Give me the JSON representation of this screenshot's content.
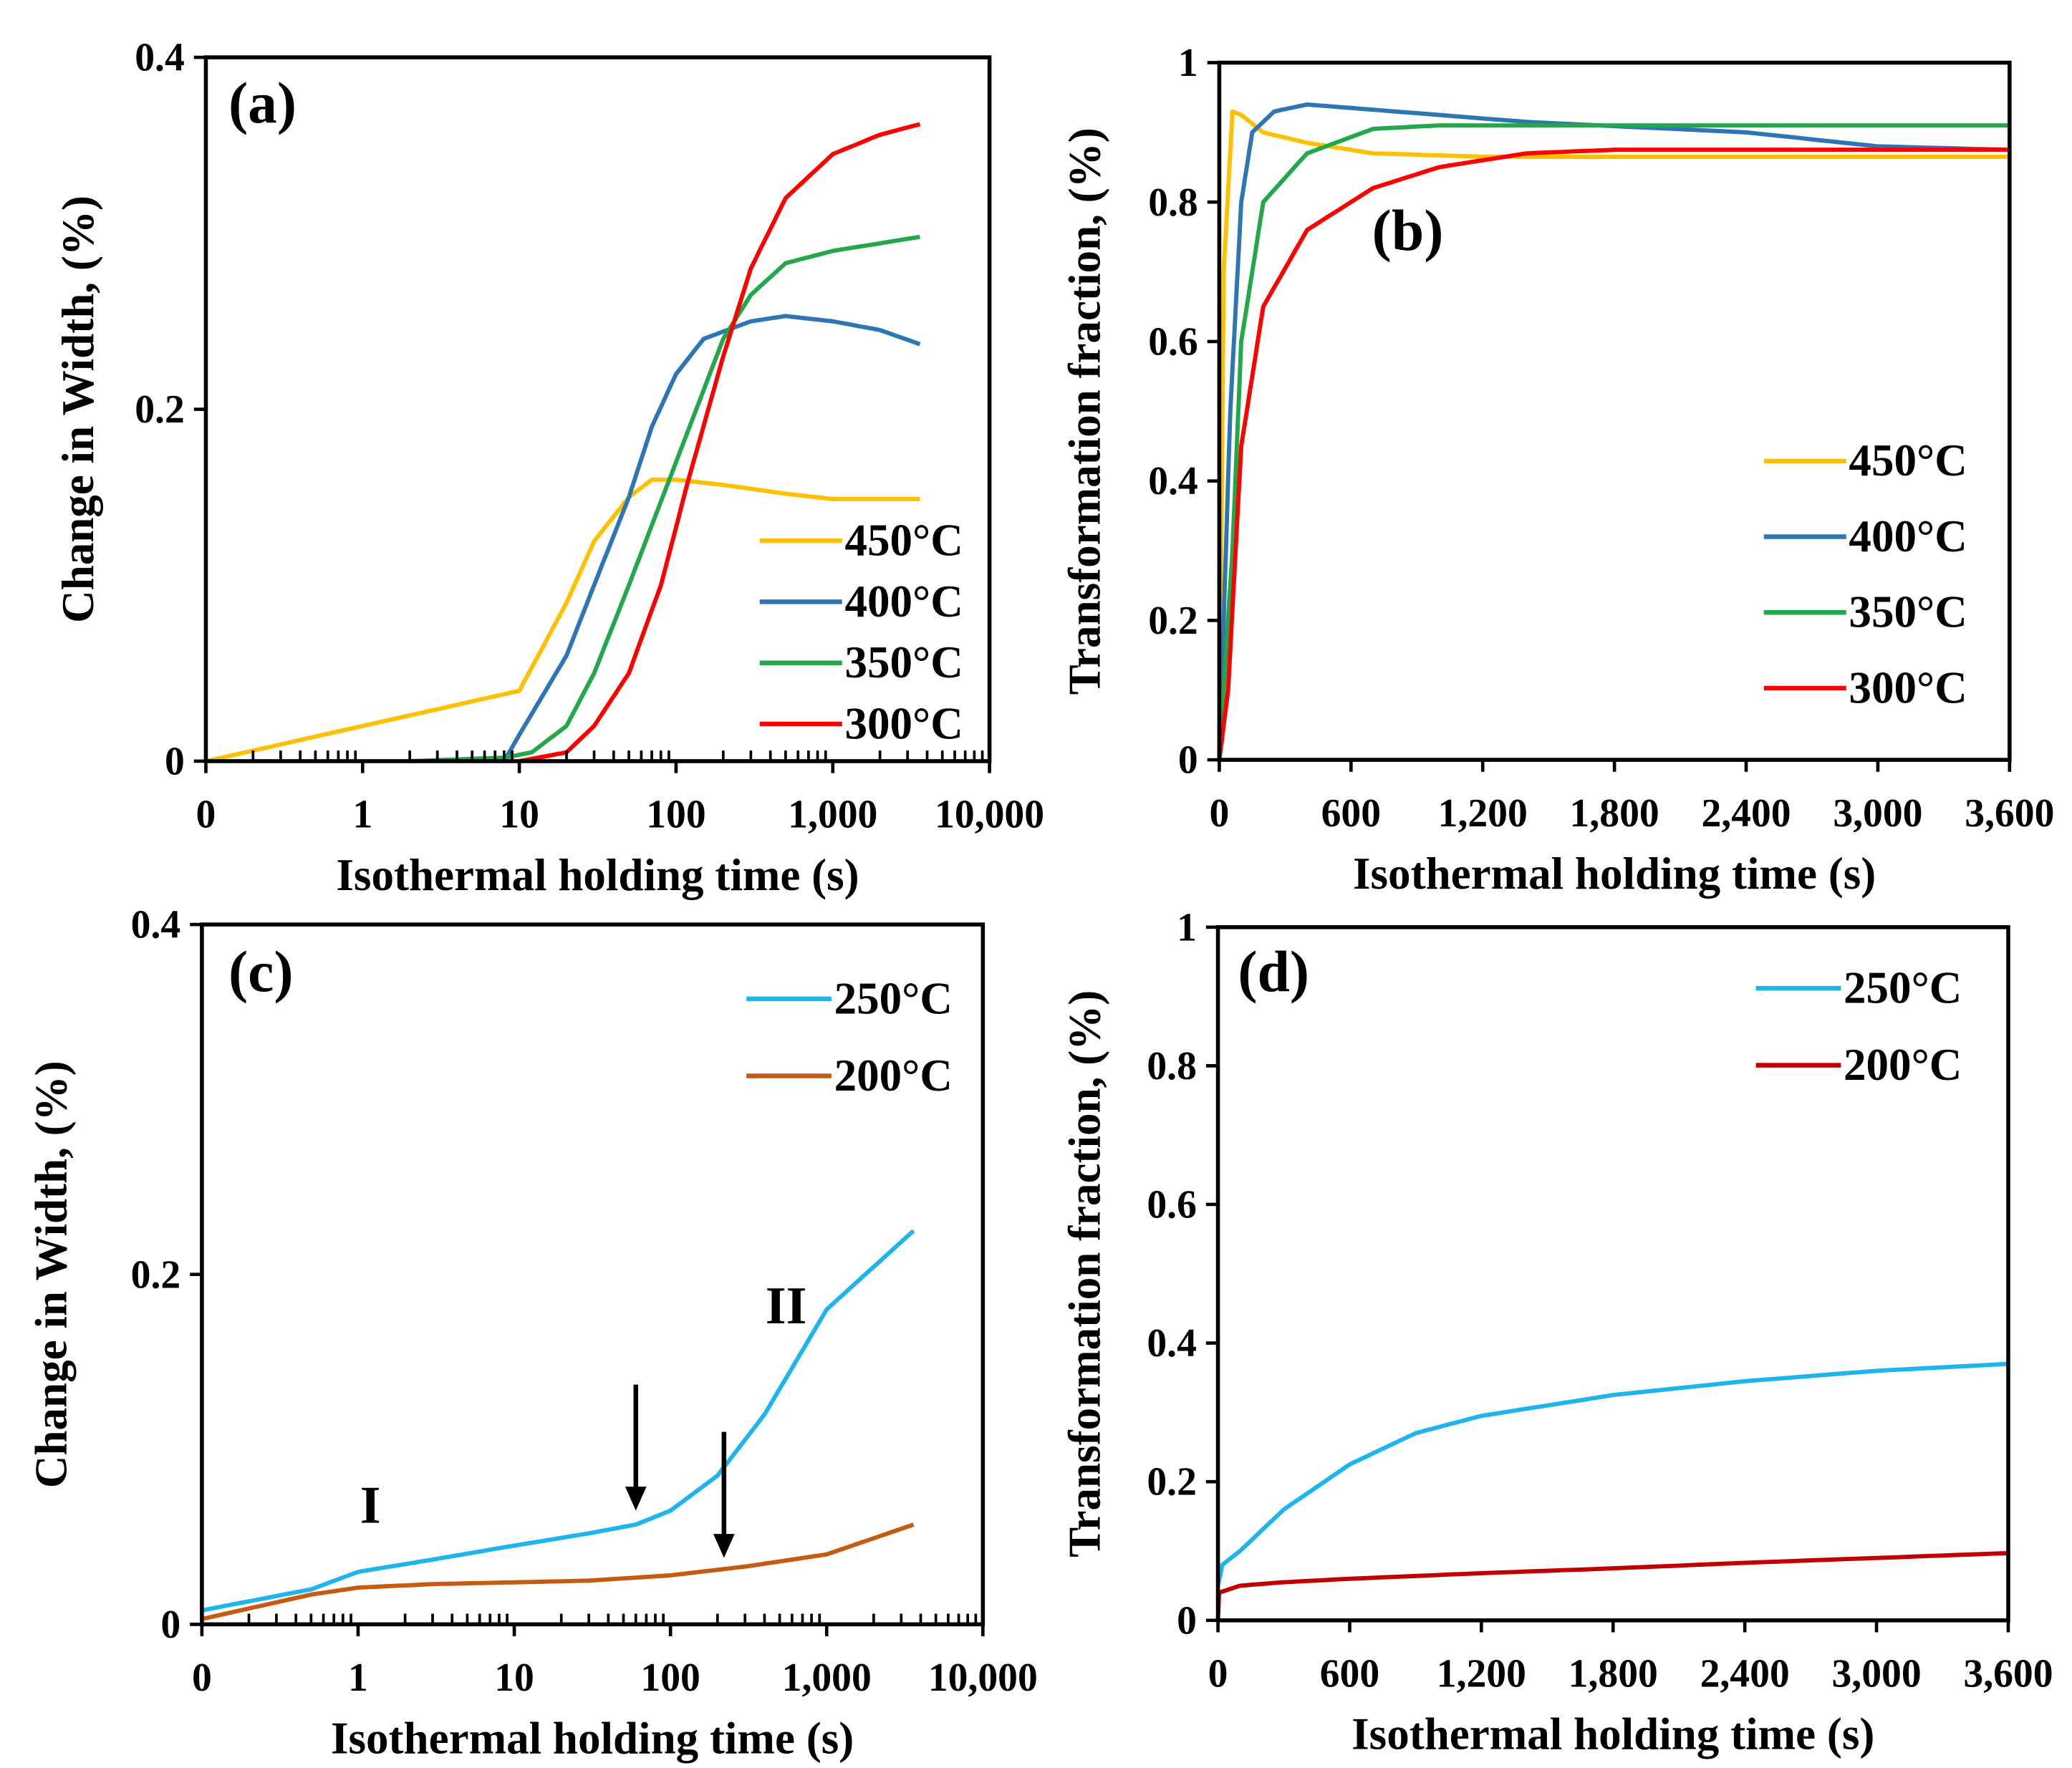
{
  "chart_data": [
    {
      "panel_label": "(a)",
      "type": "line",
      "xscale": "log",
      "xlabel": "Isothermal holding time (s)",
      "ylabel": "Change in Width, (%)",
      "xtick_labels": [
        "0",
        "1",
        "10",
        "100",
        "1,000",
        "10,000"
      ],
      "xtick_values": [
        0.1,
        1,
        10,
        100,
        1000,
        10000
      ],
      "ytick_labels": [
        "0",
        "0.2",
        "0.4"
      ],
      "ytick_values": [
        0,
        0.2,
        0.4
      ],
      "ylim": [
        0,
        0.4
      ],
      "xlim": [
        0.1,
        10000
      ],
      "legend_position": "lower-right",
      "series": [
        {
          "name": "450°C",
          "color": "#FFC000",
          "x": [
            0.1,
            10,
            20,
            30,
            50,
            70,
            100,
            200,
            500,
            1000,
            3600
          ],
          "y": [
            0,
            0.04,
            0.09,
            0.125,
            0.15,
            0.16,
            0.16,
            0.157,
            0.152,
            0.149,
            0.149
          ]
        },
        {
          "name": "400°C",
          "color": "#2E75B6",
          "x": [
            8,
            10,
            20,
            30,
            50,
            70,
            100,
            150,
            300,
            500,
            1000,
            2000,
            3600
          ],
          "y": [
            0,
            0.015,
            0.06,
            0.1,
            0.15,
            0.19,
            0.22,
            0.24,
            0.25,
            0.253,
            0.25,
            0.245,
            0.237
          ]
        },
        {
          "name": "350°C",
          "color": "#22A84A",
          "x": [
            2,
            8,
            12,
            20,
            30,
            50,
            100,
            200,
            300,
            500,
            1000,
            3600
          ],
          "y": [
            0,
            0.002,
            0.005,
            0.02,
            0.05,
            0.1,
            0.17,
            0.24,
            0.265,
            0.283,
            0.29,
            0.298
          ]
        },
        {
          "name": "300°C",
          "color": "#FF0000",
          "x": [
            10,
            20,
            30,
            50,
            80,
            120,
            200,
            300,
            500,
            1000,
            2000,
            3600
          ],
          "y": [
            0,
            0.005,
            0.02,
            0.05,
            0.1,
            0.16,
            0.23,
            0.28,
            0.32,
            0.345,
            0.356,
            0.362
          ]
        }
      ]
    },
    {
      "panel_label": "(b)",
      "type": "line",
      "xscale": "linear",
      "xlabel": "Isothermal holding time (s)",
      "ylabel": "Transformation fraction, (%)",
      "xtick_labels": [
        "0",
        "600",
        "1,200",
        "1,800",
        "2,400",
        "3,000",
        "3,600"
      ],
      "xtick_values": [
        0,
        600,
        1200,
        1800,
        2400,
        3000,
        3600
      ],
      "ytick_labels": [
        "0",
        "0.2",
        "0.4",
        "0.6",
        "0.8",
        "1"
      ],
      "ytick_values": [
        0,
        0.2,
        0.4,
        0.6,
        0.8,
        1
      ],
      "ylim": [
        0,
        1
      ],
      "xlim": [
        0,
        3600
      ],
      "legend_position": "right",
      "series": [
        {
          "name": "450°C",
          "color": "#FFC000",
          "x": [
            0,
            20,
            60,
            100,
            200,
            400,
            700,
            1200,
            3600
          ],
          "y": [
            0,
            0.7,
            0.93,
            0.925,
            0.9,
            0.885,
            0.87,
            0.865,
            0.865
          ]
        },
        {
          "name": "400°C",
          "color": "#2E75B6",
          "x": [
            0,
            50,
            100,
            150,
            250,
            400,
            800,
            1400,
            2400,
            3000,
            3600
          ],
          "y": [
            0,
            0.5,
            0.8,
            0.9,
            0.93,
            0.94,
            0.93,
            0.915,
            0.9,
            0.88,
            0.875
          ]
        },
        {
          "name": "350°C",
          "color": "#22A84A",
          "x": [
            0,
            60,
            100,
            200,
            400,
            700,
            1000,
            3600
          ],
          "y": [
            0,
            0.3,
            0.6,
            0.8,
            0.87,
            0.905,
            0.91,
            0.91
          ]
        },
        {
          "name": "300°C",
          "color": "#FF0000",
          "x": [
            0,
            40,
            100,
            200,
            400,
            700,
            1000,
            1400,
            1800,
            3600
          ],
          "y": [
            0,
            0.1,
            0.45,
            0.65,
            0.76,
            0.82,
            0.85,
            0.87,
            0.875,
            0.875
          ]
        }
      ]
    },
    {
      "panel_label": "(c)",
      "type": "line",
      "xscale": "log",
      "xlabel": "Isothermal holding time (s)",
      "ylabel": "Change in Width, (%)",
      "xtick_labels": [
        "0",
        "1",
        "10",
        "100",
        "1,000",
        "10,000"
      ],
      "xtick_values": [
        0.1,
        1,
        10,
        100,
        1000,
        10000
      ],
      "ytick_labels": [
        "0",
        "0.2",
        "0.4"
      ],
      "ytick_values": [
        0,
        0.2,
        0.4
      ],
      "ylim": [
        0,
        0.4
      ],
      "xlim": [
        0.1,
        10000
      ],
      "legend_position": "top-right",
      "annotations": [
        {
          "text": "I",
          "x": 1.2,
          "y": 0.058
        },
        {
          "text": "II",
          "x": 550,
          "y": 0.172
        }
      ],
      "arrows": [
        {
          "x": 60,
          "y_from": 0.137,
          "y_to": 0.065
        },
        {
          "x": 220,
          "y_from": 0.11,
          "y_to": 0.038
        }
      ],
      "series": [
        {
          "name": "250°C",
          "color": "#1EB4EE",
          "x": [
            0.1,
            0.5,
            1,
            3,
            10,
            30,
            60,
            100,
            200,
            400,
            1000,
            3600
          ],
          "y": [
            0.008,
            0.02,
            0.03,
            0.037,
            0.045,
            0.052,
            0.057,
            0.065,
            0.085,
            0.12,
            0.18,
            0.225
          ]
        },
        {
          "name": "200°C",
          "color": "#C55A11",
          "x": [
            0.1,
            0.5,
            1,
            3,
            10,
            30,
            100,
            300,
            1000,
            3600
          ],
          "y": [
            0.003,
            0.017,
            0.021,
            0.023,
            0.024,
            0.025,
            0.028,
            0.033,
            0.04,
            0.057
          ]
        }
      ]
    },
    {
      "panel_label": "(d)",
      "type": "line",
      "xscale": "linear",
      "xlabel": "Isothermal holding time (s)",
      "ylabel": "Transformation fraction, (%)",
      "xtick_labels": [
        "0",
        "600",
        "1,200",
        "1,800",
        "2,400",
        "3,000",
        "3,600"
      ],
      "xtick_values": [
        0,
        600,
        1200,
        1800,
        2400,
        3000,
        3600
      ],
      "ytick_labels": [
        "0",
        "0.2",
        "0.4",
        "0.6",
        "0.8",
        "1"
      ],
      "ytick_values": [
        0,
        0.2,
        0.4,
        0.6,
        0.8,
        1
      ],
      "ylim": [
        0,
        1
      ],
      "xlim": [
        0,
        3600
      ],
      "legend_position": "top-right",
      "series": [
        {
          "name": "250°C",
          "color": "#1EB4EE",
          "x": [
            0,
            20,
            100,
            300,
            600,
            900,
            1200,
            1800,
            2400,
            3000,
            3600
          ],
          "y": [
            0.05,
            0.08,
            0.1,
            0.16,
            0.225,
            0.27,
            0.295,
            0.325,
            0.345,
            0.36,
            0.37
          ]
        },
        {
          "name": "200°C",
          "color": "#C00000",
          "x": [
            0,
            5,
            100,
            300,
            600,
            1200,
            1800,
            2400,
            3000,
            3600
          ],
          "y": [
            0,
            0.04,
            0.05,
            0.055,
            0.06,
            0.068,
            0.075,
            0.083,
            0.09,
            0.097
          ]
        }
      ]
    }
  ]
}
